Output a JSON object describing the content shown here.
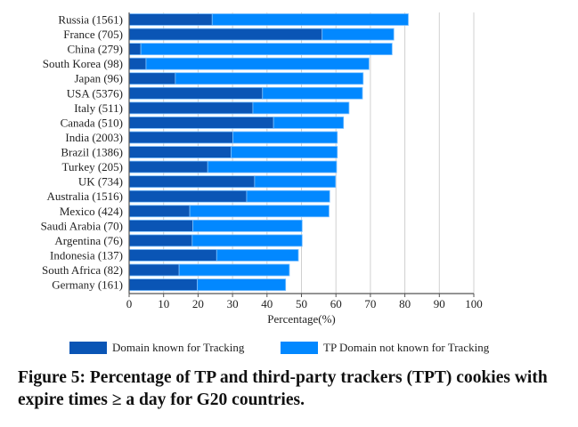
{
  "chart_data": {
    "type": "bar",
    "orientation": "horizontal",
    "stacked": true,
    "categories": [
      "Russia (1561)",
      "France (705)",
      "China (279)",
      "South Korea (98)",
      "Japan (96)",
      "USA (5376)",
      "Italy (511)",
      "Canada (510)",
      "India (2003)",
      "Brazil (1386)",
      "Turkey (205)",
      "UK (734)",
      "Australia (1516)",
      "Mexico (424)",
      "Saudi Arabia (70)",
      "Argentina (76)",
      "Indonesia (137)",
      "South Africa (82)",
      "Germany (161)"
    ],
    "series": [
      {
        "name": "Domain known for Tracking",
        "color": "#0a55b5",
        "values": [
          24.1,
          56.0,
          3.4,
          4.9,
          13.4,
          38.7,
          35.9,
          41.9,
          30.1,
          29.6,
          22.8,
          36.4,
          34.1,
          17.6,
          18.5,
          18.3,
          25.4,
          14.5,
          19.8
        ]
      },
      {
        "name": "TP Domain not known for Tracking",
        "color": "#0288ff",
        "values": [
          56.9,
          20.8,
          72.9,
          64.7,
          54.5,
          29.0,
          27.9,
          20.3,
          30.3,
          30.8,
          37.4,
          23.5,
          24.1,
          40.4,
          31.7,
          31.9,
          23.7,
          32.0,
          25.6
        ]
      }
    ],
    "totals": [
      81.0,
      76.8,
      76.3,
      69.6,
      67.9,
      67.7,
      63.8,
      62.2,
      60.4,
      60.4,
      60.2,
      59.9,
      58.2,
      58.0,
      50.2,
      50.2,
      49.1,
      46.5,
      45.4
    ],
    "xlabel": "Percentage(%)",
    "xlim": [
      0,
      100
    ],
    "xticks": [
      "0",
      "10",
      "20",
      "30",
      "40",
      "50",
      "60",
      "70",
      "80",
      "90",
      "100"
    ],
    "grid": true,
    "legend_placement": "bottom"
  },
  "caption": "Figure 5: Percentage of TP and third-party trackers (TPT) cookies with expire times ≥ a day for G20 countries."
}
